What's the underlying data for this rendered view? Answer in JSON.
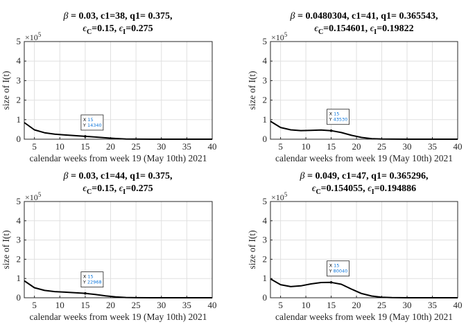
{
  "figure_caption": "",
  "chart_data": [
    {
      "type": "line",
      "title_parts": {
        "beta": "0.03",
        "c1": "38",
        "q1": "0.375",
        "eps_c": "0.15",
        "eps_i": "0.275"
      },
      "xlabel": "calendar weeks from week 19 (May 10th) 2021",
      "ylabel": "size of I(t)",
      "xlim": [
        3,
        40
      ],
      "ylim": [
        0,
        5
      ],
      "y_multiplier": "×10",
      "y_multiplier_exp": "5",
      "xticks": [
        5,
        10,
        15,
        20,
        25,
        30,
        35,
        40
      ],
      "yticks": [
        0,
        1,
        2,
        3,
        4,
        5
      ],
      "series": [
        {
          "name": "I(t)",
          "x": [
            3,
            5,
            7,
            9,
            11,
            13,
            15,
            17,
            19,
            21,
            23,
            25,
            28,
            31,
            34,
            37,
            40
          ],
          "y": [
            0.85,
            0.48,
            0.33,
            0.26,
            0.215,
            0.18,
            0.145,
            0.11,
            0.07,
            0.035,
            0.012,
            0.004,
            0.001,
            0,
            0,
            0,
            0
          ]
        }
      ],
      "datatip": {
        "x_label": "X",
        "x_value": "15",
        "y_label": "Y",
        "y_value": "14340",
        "x": 15,
        "y": 0.1434
      }
    },
    {
      "type": "line",
      "title_parts": {
        "beta": "0.0480304",
        "c1": "41",
        "q1": "0.365543",
        "eps_c": "0.154601",
        "eps_i": "0.19822"
      },
      "xlabel": "calendar weeks from week 19 (May 10th) 2021",
      "ylabel": "size of I(t)",
      "xlim": [
        3,
        40
      ],
      "ylim": [
        0,
        5
      ],
      "y_multiplier": "×10",
      "y_multiplier_exp": "5",
      "xticks": [
        5,
        10,
        15,
        20,
        25,
        30,
        35,
        40
      ],
      "yticks": [
        0,
        1,
        2,
        3,
        4,
        5
      ],
      "series": [
        {
          "name": "I(t)",
          "x": [
            3,
            5,
            7,
            9,
            11,
            13,
            15,
            17,
            19,
            21,
            23,
            25,
            27,
            30,
            33,
            36,
            40
          ],
          "y": [
            0.92,
            0.6,
            0.48,
            0.44,
            0.45,
            0.47,
            0.436,
            0.34,
            0.2,
            0.09,
            0.03,
            0.008,
            0.002,
            0,
            0,
            0,
            0
          ]
        }
      ],
      "datatip": {
        "x_label": "X",
        "x_value": "15",
        "y_label": "Y",
        "y_value": "43530",
        "x": 15,
        "y": 0.4353
      }
    },
    {
      "type": "line",
      "title_parts": {
        "beta": "0.03",
        "c1": "44",
        "q1": "0.375",
        "eps_c": "0.15",
        "eps_i": "0.275"
      },
      "xlabel": "calendar weeks from week 19 (May 10th) 2021",
      "ylabel": "size of I(t)",
      "xlim": [
        3,
        40
      ],
      "ylim": [
        0,
        5
      ],
      "y_multiplier": "×10",
      "y_multiplier_exp": "5",
      "xticks": [
        5,
        10,
        15,
        20,
        25,
        30,
        35,
        40
      ],
      "yticks": [
        0,
        1,
        2,
        3,
        4,
        5
      ],
      "series": [
        {
          "name": "I(t)",
          "x": [
            3,
            5,
            7,
            9,
            11,
            13,
            15,
            17,
            19,
            21,
            23,
            25,
            28,
            31,
            34,
            37,
            40
          ],
          "y": [
            0.88,
            0.52,
            0.38,
            0.32,
            0.29,
            0.26,
            0.23,
            0.17,
            0.1,
            0.045,
            0.015,
            0.005,
            0.001,
            0,
            0,
            0,
            0
          ]
        }
      ],
      "datatip": {
        "x_label": "X",
        "x_value": "15",
        "y_label": "Y",
        "y_value": "22968",
        "x": 15,
        "y": 0.22968
      }
    },
    {
      "type": "line",
      "title_parts": {
        "beta": "0.049",
        "c1": "47",
        "q1": "0.365296",
        "eps_c": "0.154055",
        "eps_i": "0.194886"
      },
      "xlabel": "calendar weeks from week 19 (May 10th) 2021",
      "ylabel": "size of I(t)",
      "xlim": [
        3,
        40
      ],
      "ylim": [
        0,
        5
      ],
      "y_multiplier": "×10",
      "y_multiplier_exp": "5",
      "xticks": [
        5,
        10,
        15,
        20,
        25,
        30,
        35,
        40
      ],
      "yticks": [
        0,
        1,
        2,
        3,
        4,
        5
      ],
      "series": [
        {
          "name": "I(t)",
          "x": [
            3,
            5,
            7,
            9,
            11,
            13,
            15,
            17,
            19,
            21,
            23,
            25,
            27,
            30,
            33,
            36,
            40
          ],
          "y": [
            0.98,
            0.68,
            0.58,
            0.62,
            0.72,
            0.79,
            0.8,
            0.7,
            0.45,
            0.22,
            0.09,
            0.03,
            0.008,
            0.001,
            0,
            0,
            0
          ]
        }
      ],
      "datatip": {
        "x_label": "X",
        "x_value": "15",
        "y_label": "Y",
        "y_value": "80040",
        "x": 15,
        "y": 0.8004
      }
    }
  ]
}
